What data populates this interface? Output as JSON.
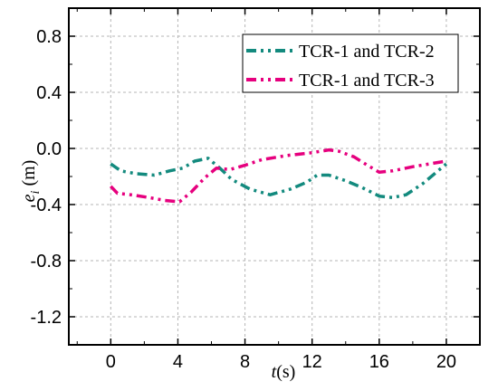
{
  "chart_data": {
    "type": "line",
    "xlabel": "t(s)",
    "ylabel": "e_i (m)",
    "xlim": [
      -2.5,
      22
    ],
    "ylim": [
      -1.4,
      1.0
    ],
    "xticks": [
      0,
      4,
      8,
      12,
      16,
      20
    ],
    "yticks": [
      0.8,
      0.4,
      0.0,
      -0.4,
      -0.8,
      -1.2
    ],
    "x_tick_labels": [
      "0",
      "4",
      "8",
      "12",
      "16",
      "20"
    ],
    "y_tick_labels": [
      "0.8",
      "0.4",
      "0.0",
      "-0.4",
      "-0.8",
      "-1.2"
    ],
    "grid": true,
    "legend_position": "top-right",
    "series": [
      {
        "name": "TCR-1 and TCR-2",
        "color": "#138a7e",
        "x": [
          0,
          0.6,
          1.5,
          2.6,
          3.5,
          4.3,
          5.0,
          5.8,
          6.5,
          7.2,
          8.3,
          9.5,
          10.7,
          11.7,
          12.3,
          13.0,
          14.0,
          15.0,
          16.0,
          16.8,
          17.6,
          18.6,
          19.5,
          20.0
        ],
        "y": [
          -0.11,
          -0.16,
          -0.18,
          -0.19,
          -0.16,
          -0.14,
          -0.09,
          -0.07,
          -0.14,
          -0.22,
          -0.29,
          -0.33,
          -0.29,
          -0.24,
          -0.19,
          -0.19,
          -0.23,
          -0.28,
          -0.34,
          -0.35,
          -0.33,
          -0.25,
          -0.16,
          -0.11
        ]
      },
      {
        "name": "TCR-1 and TCR-3",
        "color": "#e6007e",
        "x": [
          0,
          0.4,
          1.2,
          2.3,
          3.2,
          4.1,
          4.8,
          5.6,
          6.3,
          7.1,
          8.0,
          9.0,
          10.5,
          12.0,
          13.0,
          13.6,
          14.5,
          15.3,
          16.0,
          16.8,
          18.0,
          19.5,
          20.0
        ],
        "y": [
          -0.27,
          -0.32,
          -0.33,
          -0.35,
          -0.37,
          -0.38,
          -0.31,
          -0.21,
          -0.14,
          -0.15,
          -0.12,
          -0.08,
          -0.05,
          -0.03,
          -0.01,
          -0.02,
          -0.06,
          -0.12,
          -0.17,
          -0.16,
          -0.13,
          -0.1,
          -0.09
        ]
      }
    ]
  }
}
